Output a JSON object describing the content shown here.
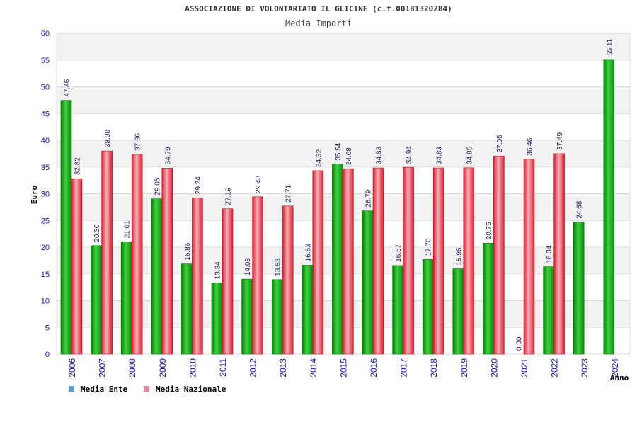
{
  "chart_data": {
    "type": "bar",
    "title": "ASSOCIAZIONE DI VOLONTARIATO IL GLICINE (c.f.00181320284)",
    "subtitle": "Media Importi",
    "ylabel": "Euro",
    "xlabel": "Anno",
    "ylim": [
      0,
      60
    ],
    "yticks": [
      0,
      5,
      10,
      15,
      20,
      25,
      30,
      35,
      40,
      45,
      50,
      55,
      60
    ],
    "categories": [
      "2006",
      "2007",
      "2008",
      "2009",
      "2010",
      "2011",
      "2012",
      "2013",
      "2014",
      "2015",
      "2016",
      "2017",
      "2018",
      "2019",
      "2020",
      "2021",
      "2022",
      "2023",
      "2024"
    ],
    "series": [
      {
        "name": "Media Ente",
        "legend_color": "#5b9bd5",
        "bar_color": "#1fa81f",
        "values": [
          47.46,
          20.3,
          21.01,
          29.05,
          16.86,
          13.34,
          14.03,
          13.93,
          16.63,
          35.54,
          26.79,
          16.57,
          17.7,
          15.95,
          20.75,
          0.0,
          16.34,
          24.68,
          55.11
        ],
        "labels": [
          "47.46",
          "20.30",
          "21.01",
          "29.05",
          "16.86",
          "13.34",
          "14.03",
          "13.93",
          "16.63",
          "35.54",
          "26.79",
          "16.57",
          "17.70",
          "15.95",
          "20.75",
          "0.00",
          "16.34",
          "24.68",
          "55.11"
        ]
      },
      {
        "name": "Media Nazionale",
        "legend_color": "#e87fa8",
        "bar_color": "#e8323c",
        "values": [
          32.82,
          38.0,
          37.36,
          34.79,
          29.24,
          27.19,
          29.43,
          27.71,
          34.32,
          34.68,
          34.83,
          34.94,
          34.83,
          34.85,
          37.05,
          36.46,
          37.49,
          null,
          null
        ],
        "labels": [
          "32.82",
          "38.00",
          "37.36",
          "34.79",
          "29.24",
          "27.19",
          "29.43",
          "27.71",
          "34.32",
          "34.68",
          "34.83",
          "34.94",
          "34.83",
          "34.85",
          "37.05",
          "36.46",
          "37.49",
          null,
          null
        ]
      }
    ],
    "grid": true,
    "legend_position": "bottom-left"
  }
}
